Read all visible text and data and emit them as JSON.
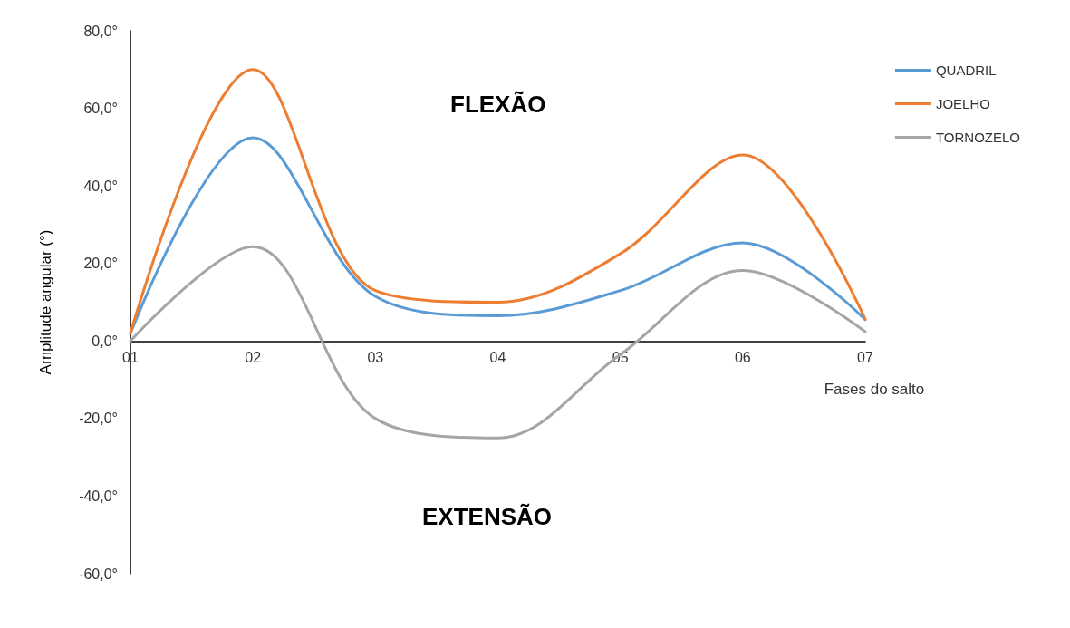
{
  "chart_data": {
    "type": "line",
    "xlabel": "Fases do salto",
    "ylabel": "Amplitude angular (°)",
    "categories": [
      "01",
      "02",
      "03",
      "04",
      "05",
      "06",
      "07"
    ],
    "series": [
      {
        "name": "QUADRIL",
        "color": "#5b9bd5",
        "values": [
          2,
          52.4,
          11.5,
          6.5,
          13,
          25.3,
          5.5
        ]
      },
      {
        "name": "JOELHO",
        "color": "#ed7d31",
        "values": [
          2,
          70,
          13,
          10,
          22.5,
          48,
          5.6
        ]
      },
      {
        "name": "TORNOZELO",
        "color": "#a5a5a5",
        "values": [
          0,
          24.3,
          -20,
          -25,
          -3.5,
          18.2,
          2.4
        ]
      }
    ],
    "ylim": [
      -60,
      80
    ],
    "yticks": [
      {
        "value": -60,
        "label": "-60,0°"
      },
      {
        "value": -40,
        "label": "-40,0°"
      },
      {
        "value": -20,
        "label": "-20,0°"
      },
      {
        "value": 0,
        "label": "0,0°"
      },
      {
        "value": 20,
        "label": "20,0°"
      },
      {
        "value": 40,
        "label": "40,0°"
      },
      {
        "value": 60,
        "label": "60,0°"
      },
      {
        "value": 80,
        "label": "80,0°"
      }
    ],
    "annotations": [
      "FLEXÃO",
      "EXTENSÃO"
    ],
    "grid": false,
    "legend": "top right",
    "marker": "none",
    "line_style": "solid"
  }
}
